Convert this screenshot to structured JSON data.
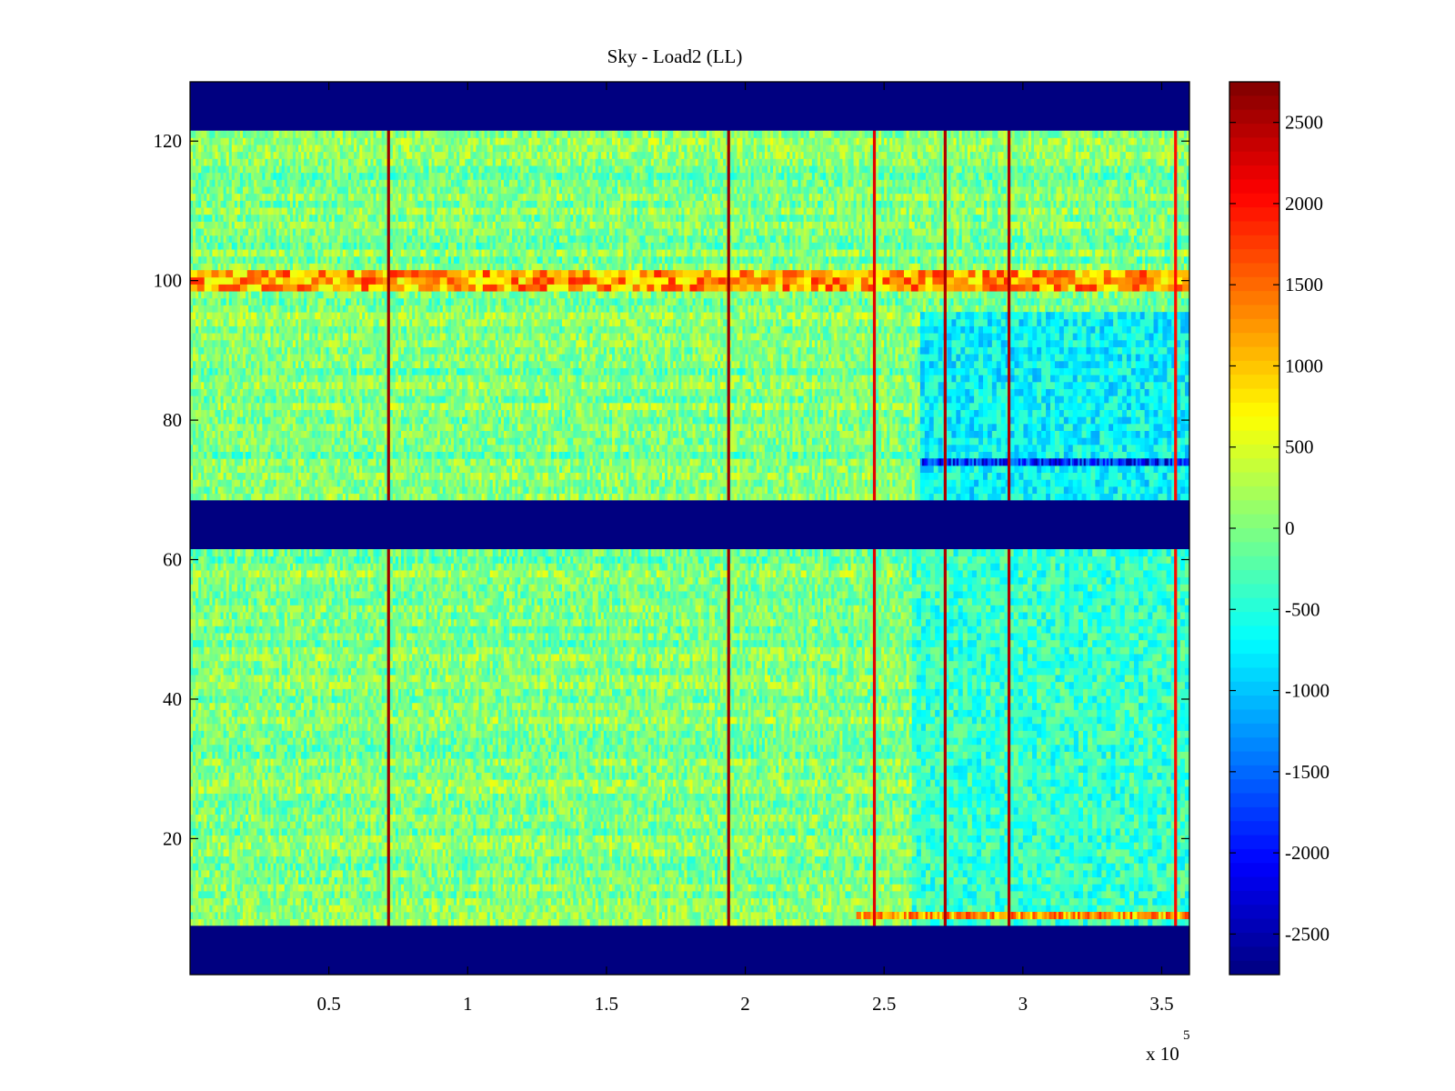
{
  "chart_data": {
    "type": "heatmap",
    "title": "Sky - Load2 (LL)",
    "xlabel": "",
    "ylabel": "",
    "x_multiplier_label": {
      "base": "x 10",
      "exponent": "5"
    },
    "xlim": [
      0.0,
      3.6
    ],
    "ylim": [
      0.5,
      128.5
    ],
    "x_ticks": [
      0.5,
      1,
      1.5,
      2,
      2.5,
      3,
      3.5
    ],
    "x_tick_labels": [
      "0.5",
      "1",
      "1.5",
      "2",
      "2.5",
      "3",
      "3.5"
    ],
    "y_ticks": [
      20,
      40,
      60,
      80,
      100,
      120
    ],
    "y_tick_labels": [
      "20",
      "40",
      "60",
      "80",
      "100",
      "120"
    ],
    "colorbar": {
      "colormap": "jet",
      "clim": [
        -2750,
        2750
      ],
      "ticks": [
        2500,
        2000,
        1500,
        1000,
        500,
        0,
        -500,
        -1000,
        -1500,
        -2000,
        -2500
      ],
      "tick_labels": [
        "2500",
        "2000",
        "1500",
        "1000",
        "500",
        "0",
        "-500",
        "-1000",
        "-1500",
        "-2000",
        "-2500"
      ]
    },
    "grid": false,
    "masked_row_ranges": [
      [
        1,
        7
      ],
      [
        62,
        68
      ],
      [
        122,
        128
      ]
    ],
    "masked_value": -2750,
    "background_value": 0,
    "features": {
      "vertical_streaks": [
        {
          "x": 0.715,
          "value": 2600
        },
        {
          "x": 1.94,
          "value": 2600
        },
        {
          "x": 2.465,
          "value": 2200
        },
        {
          "x": 2.72,
          "value": 2500
        },
        {
          "x": 2.95,
          "value": 2500
        },
        {
          "x": 3.55,
          "value": 2000
        }
      ],
      "row_bands": [
        {
          "rows": [
            99,
            101
          ],
          "x_range": [
            0.0,
            3.6
          ],
          "value": 1200
        },
        {
          "rows": [
            74,
            74
          ],
          "x_range": [
            2.63,
            3.6
          ],
          "value": -1900
        },
        {
          "rows": [
            9,
            9
          ],
          "x_range": [
            2.4,
            3.6
          ],
          "value": 1200
        }
      ],
      "blocks": [
        {
          "rows": [
            69,
            95
          ],
          "x_range": [
            2.63,
            3.6
          ],
          "value": -700
        },
        {
          "rows": [
            8,
            61
          ],
          "x_range": [
            2.6,
            3.6
          ],
          "value": -400
        }
      ]
    }
  }
}
